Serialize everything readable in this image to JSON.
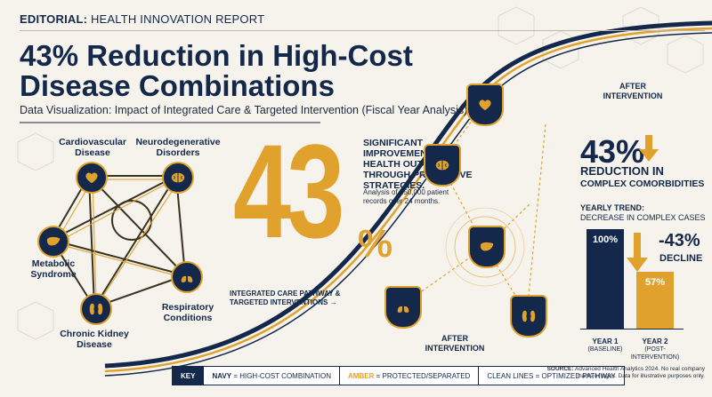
{
  "header": {
    "prefix": "EDITORIAL:",
    "text": "HEALTH INNOVATION REPORT"
  },
  "title": "43% Reduction in High-Cost Disease Combinations",
  "subtitle": "Data Visualization: Impact of Integrated Care & Targeted Intervention (Fiscal Year Analysis)",
  "network": {
    "nodes": [
      {
        "label": "Cardiovascular Disease",
        "icon": "heart-icon"
      },
      {
        "label": "Neurodegenerative Disorders",
        "icon": "brain-icon"
      },
      {
        "label": "Metabolic Syndrome",
        "icon": "liver-icon"
      },
      {
        "label": "Respiratory Conditions",
        "icon": "lungs-icon"
      },
      {
        "label": "Chronic Kidney Disease",
        "icon": "kidney-icon"
      }
    ]
  },
  "headline_stat": {
    "value": "43",
    "unit": "%"
  },
  "significance": {
    "text": "SIGNIFICANT IMPROVEMENT IN HEALTH OUTCOMES THROUGH PREVENTIVE STRATEGIES.",
    "note": "Analysis of 250,000 patient records over 24 months."
  },
  "pathway_label": "INTEGRATED CARE PATHWAY & TARGETED INTERVENTIONS",
  "after_labels": {
    "top": "AFTER INTERVENTION",
    "bottom": "AFTER INTERVENTION"
  },
  "side_stat": {
    "value": "43%",
    "label_line1": "REDUCTION IN",
    "label_line2": "COMPLEX COMORBIDITIES"
  },
  "trend": {
    "title": "YEARLY TREND:",
    "subtitle": "DECREASE IN COMPLEX CASES"
  },
  "chart_data": {
    "type": "bar",
    "title": "YEARLY TREND:",
    "categories": [
      "YEAR 1",
      "YEAR 2"
    ],
    "category_sublabels": [
      "(BASELINE)",
      "(POST-INTERVENTION)"
    ],
    "values": [
      100,
      57
    ],
    "value_labels": [
      "100%",
      "57%"
    ],
    "ylim": [
      0,
      100
    ],
    "colors": [
      "#13284a",
      "#e0a12d"
    ],
    "annotation": {
      "change": "-43%",
      "label": "DECLINE"
    }
  },
  "key": {
    "head": "KEY",
    "items": [
      {
        "prefix": "NAVY",
        "text": " = HIGH-COST COMBINATION"
      },
      {
        "prefix": "AMBER",
        "text": " = PROTECTED/SEPARATED"
      },
      {
        "prefix": "",
        "text": "CLEAN LINES = OPTIMIZED PATHWAY"
      }
    ]
  },
  "source": {
    "prefix": "SOURCE:",
    "text": "Advanced Health Analytics 2024. No real company marks or logos. Data for illustrative purposes only."
  },
  "colors": {
    "navy": "#13284a",
    "amber": "#e0a12d",
    "background": "#f6f3ec"
  }
}
